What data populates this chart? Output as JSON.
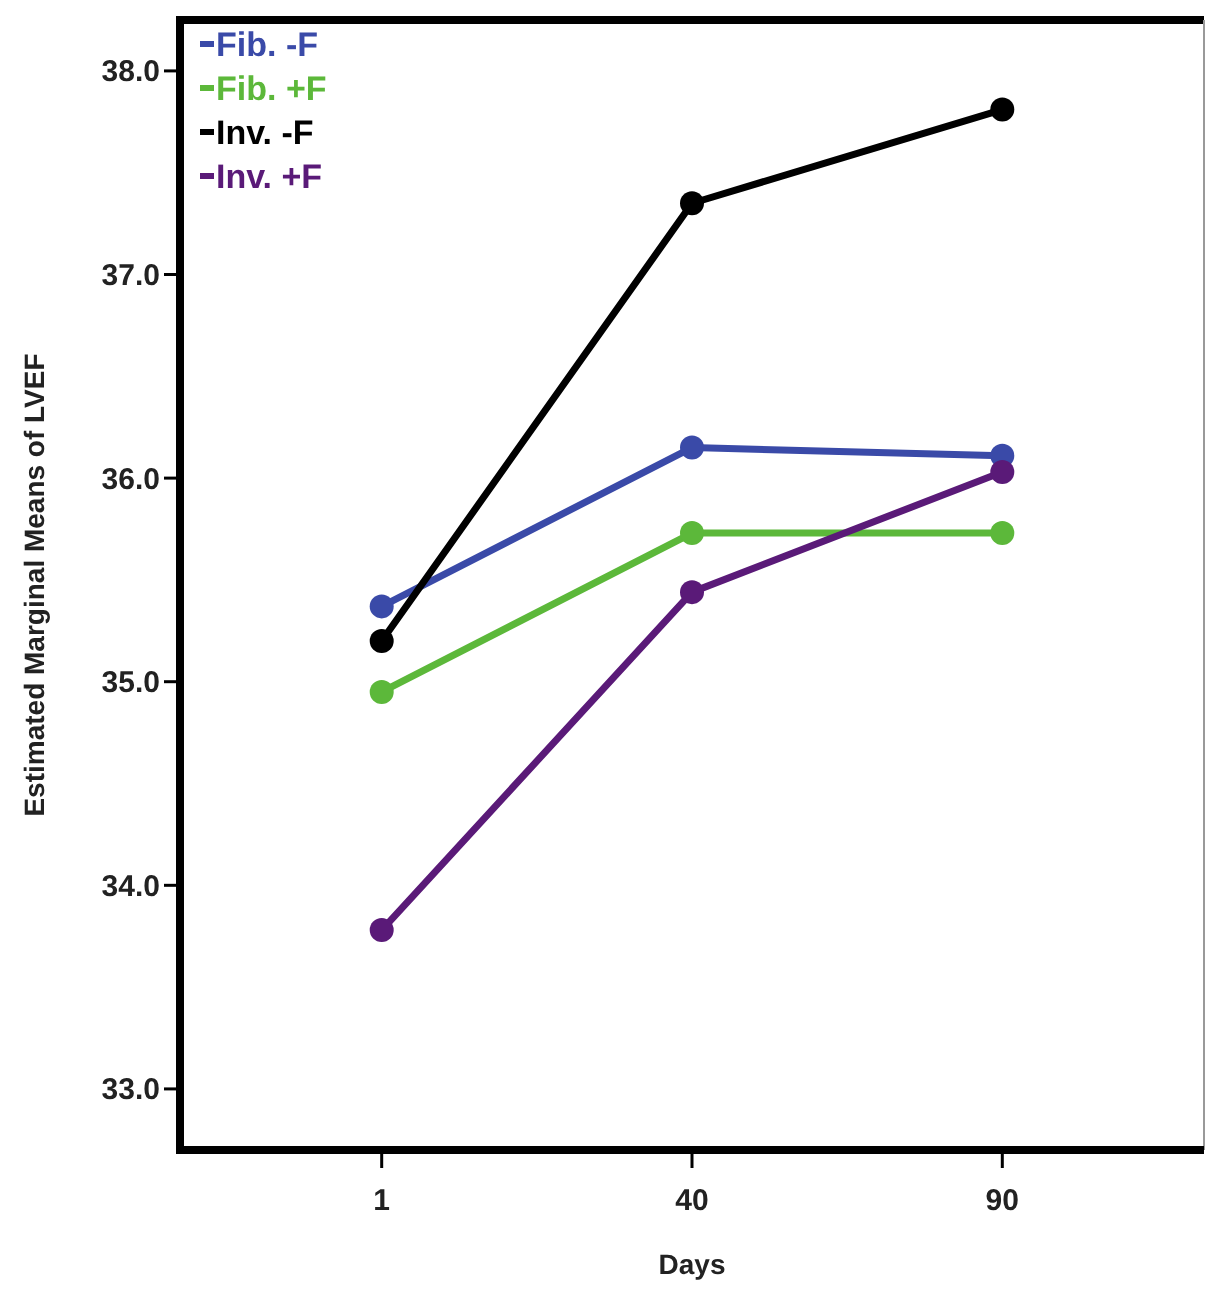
{
  "chart_data": {
    "type": "line",
    "xlabel": "Days",
    "ylabel": "Estimated Marginal Means of LVEF",
    "categories": [
      "1",
      "40",
      "90"
    ],
    "ylim": [
      32.7,
      38.25
    ],
    "yticks": [
      {
        "value": 33,
        "label": "33.0"
      },
      {
        "value": 34,
        "label": "34.0"
      },
      {
        "value": 35,
        "label": "35.0"
      },
      {
        "value": 36,
        "label": "36.0"
      },
      {
        "value": 37,
        "label": "37.0"
      },
      {
        "value": 38,
        "label": "38.0"
      }
    ],
    "grid": false,
    "legend": "top left",
    "marker": "circle",
    "line_style": "solid",
    "series": [
      {
        "name": "Fib. -F",
        "color": "#3a4aa8",
        "values": [
          35.37,
          36.15,
          36.11
        ]
      },
      {
        "name": "Fib. +F",
        "color": "#5cb83a",
        "values": [
          34.95,
          35.73,
          35.73
        ]
      },
      {
        "name": "Inv. -F",
        "color": "#000000",
        "values": [
          35.2,
          37.35,
          37.81
        ]
      },
      {
        "name": "Inv. +F",
        "color": "#5a1a78",
        "values": [
          33.78,
          35.44,
          36.03
        ]
      }
    ]
  }
}
